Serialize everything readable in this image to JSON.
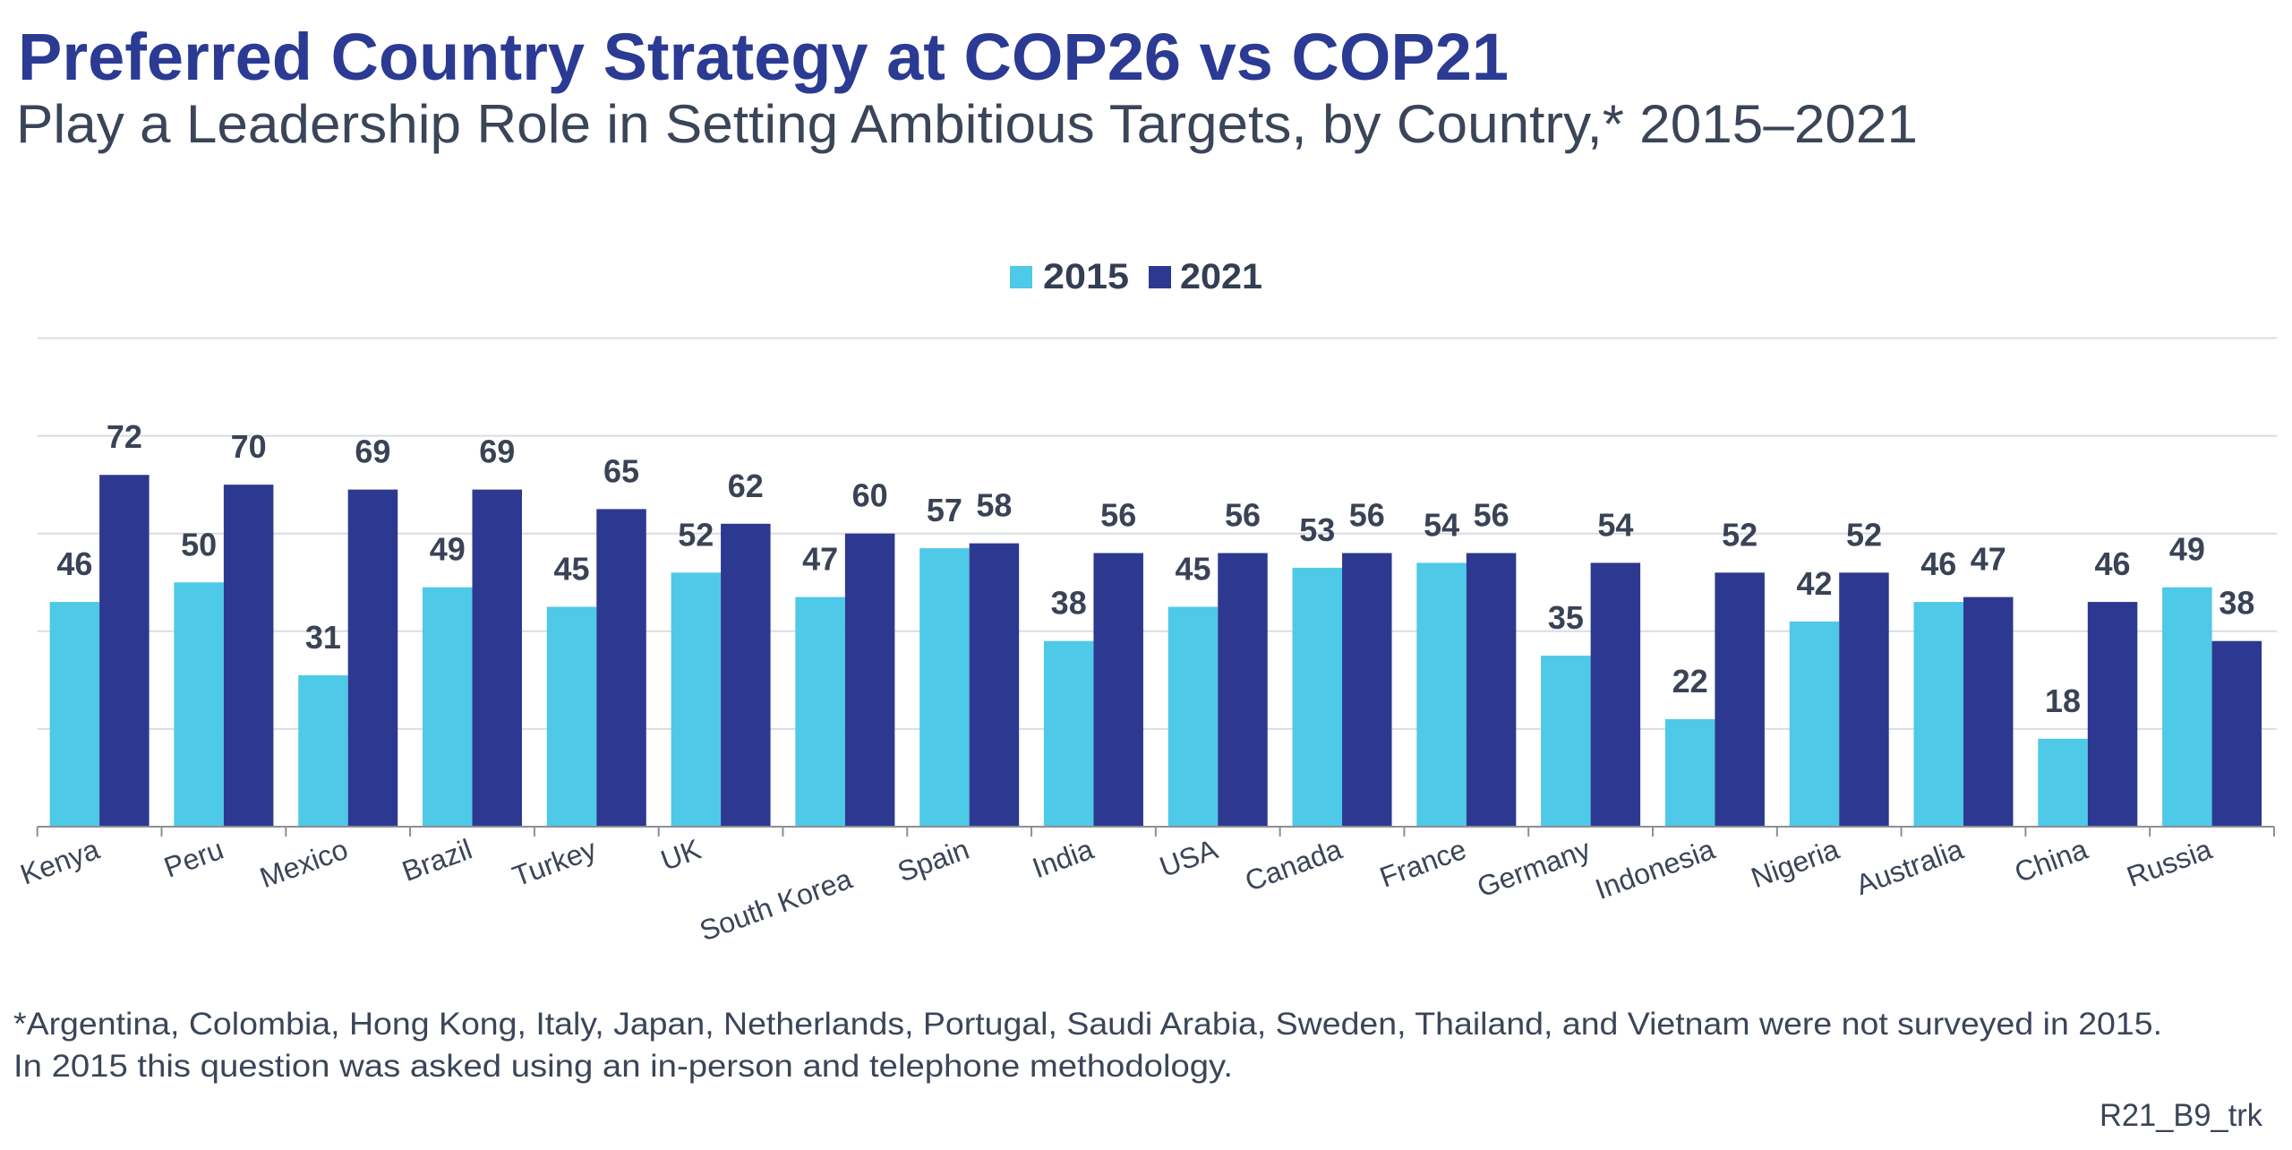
{
  "header": {
    "title": "Preferred Country Strategy at COP26 vs COP21",
    "subtitle": "Play a Leadership Role in Setting Ambitious Targets, by Country,* 2015–2021"
  },
  "footer": {
    "note_line1": "*Argentina, Colombia, Hong Kong, Italy, Japan, Netherlands, Portugal, Saudi Arabia, Sweden, Thailand, and Vietnam were not surveyed in 2015.",
    "note_line2": "In 2015 this question was asked using an in-person and telephone methodology.",
    "code": "R21_B9_trk"
  },
  "chart_data": {
    "type": "bar",
    "title": "Preferred Country Strategy at COP26 vs COP21",
    "subtitle": "Play a Leadership Role in Setting Ambitious Targets, by Country,* 2015–2021",
    "xlabel": "",
    "ylabel": "",
    "ylim": [
      0,
      100
    ],
    "grid": true,
    "gridline_step": 20,
    "legend_position": "top-center",
    "categories": [
      "Kenya",
      "Peru",
      "Mexico",
      "Brazil",
      "Turkey",
      "UK",
      "South Korea",
      "Spain",
      "India",
      "USA",
      "Canada",
      "France",
      "Germany",
      "Indonesia",
      "Nigeria",
      "Australia",
      "China",
      "Russia"
    ],
    "series": [
      {
        "name": "2015",
        "color": "#4EC9E7",
        "values": [
          46,
          50,
          31,
          49,
          45,
          52,
          47,
          57,
          38,
          45,
          53,
          54,
          35,
          22,
          42,
          46,
          18,
          49
        ]
      },
      {
        "name": "2021",
        "color": "#2D3990",
        "values": [
          72,
          70,
          69,
          69,
          65,
          62,
          60,
          58,
          56,
          56,
          56,
          56,
          54,
          52,
          52,
          47,
          46,
          38
        ]
      }
    ]
  }
}
